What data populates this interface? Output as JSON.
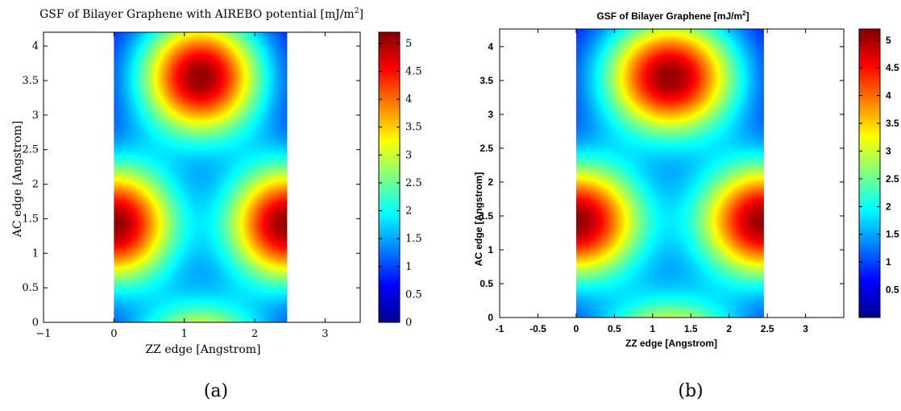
{
  "colormap": [
    "#00008f",
    "#0000ff",
    "#0080ff",
    "#00ffff",
    "#80ff80",
    "#ffff00",
    "#ff8000",
    "#ff0000",
    "#800000"
  ],
  "captions": [
    "(a)",
    "(b)"
  ],
  "chart_data": [
    {
      "type": "heatmap",
      "title_prefix": "GSF of Bilayer Graphene with AIREBO potential [mJ/m",
      "title_sup": "2",
      "title_suffix": "]",
      "xlabel": "ZZ edge [Angstrom]",
      "ylabel": "AC edge [Angstrom]",
      "xlim": [
        -1,
        3.5
      ],
      "ylim": [
        0,
        4.2
      ],
      "data_x_range": [
        0,
        2.46
      ],
      "data_y_range": [
        0,
        4.26
      ],
      "xticks": [
        -1,
        0,
        1,
        2,
        3
      ],
      "xtick_labels": [
        "−1",
        "0",
        "1",
        "2",
        "3"
      ],
      "yticks": [
        0,
        0.5,
        1,
        1.5,
        2,
        2.5,
        3,
        3.5,
        4
      ],
      "ytick_labels": [
        "0",
        "0.5",
        "1",
        "1.5",
        "2",
        "2.5",
        "3",
        "3.5",
        "4"
      ],
      "clim": [
        0,
        5.2
      ],
      "colorbar_ticks": [
        0,
        0.5,
        1,
        1.5,
        2,
        2.5,
        3,
        3.5,
        4,
        4.5,
        5
      ],
      "colorbar_labels": [
        "0",
        "0.5",
        "1",
        "1.5",
        "2",
        "2.5",
        "3",
        "3.5",
        "4",
        "4.5",
        "5"
      ],
      "peaks": [
        {
          "x": 1.23,
          "y": 3.55,
          "value": 5.1
        },
        {
          "x": 0.0,
          "y": 1.42,
          "value": 5.1
        },
        {
          "x": 2.46,
          "y": 1.42,
          "value": 5.1
        }
      ]
    },
    {
      "type": "heatmap",
      "title_prefix": "GSF of Bilayer Graphene [mJ/m",
      "title_sup": "2",
      "title_suffix": "]",
      "xlabel": "ZZ edge [Angstrom]",
      "ylabel": "AC edge [Angstrom]",
      "xlim": [
        -1,
        3.5
      ],
      "ylim": [
        0,
        4.26
      ],
      "data_x_range": [
        0,
        2.46
      ],
      "data_y_range": [
        0,
        4.26
      ],
      "xticks": [
        -1,
        -0.5,
        0,
        0.5,
        1,
        1.5,
        2,
        2.5,
        3
      ],
      "xtick_labels": [
        "-1",
        "-0.5",
        "0",
        "0.5",
        "1",
        "1.5",
        "2",
        "2.5",
        "3"
      ],
      "yticks": [
        0,
        0.5,
        1,
        1.5,
        2,
        2.5,
        3,
        3.5,
        4
      ],
      "ytick_labels": [
        "0",
        "0.5",
        "1",
        "1.5",
        "2",
        "2.5",
        "3",
        "3.5",
        "4"
      ],
      "clim": [
        0,
        5.2
      ],
      "colorbar_ticks": [
        0.5,
        1,
        1.5,
        2,
        2.5,
        3,
        3.5,
        4,
        4.5,
        5
      ],
      "colorbar_labels": [
        "0.5",
        "1",
        "1.5",
        "2",
        "2.5",
        "3",
        "3.5",
        "4",
        "4.5",
        "5"
      ],
      "peaks": [
        {
          "x": 1.23,
          "y": 3.55,
          "value": 5.1
        },
        {
          "x": 0.0,
          "y": 1.42,
          "value": 5.1
        },
        {
          "x": 2.46,
          "y": 1.42,
          "value": 5.1
        }
      ]
    }
  ]
}
